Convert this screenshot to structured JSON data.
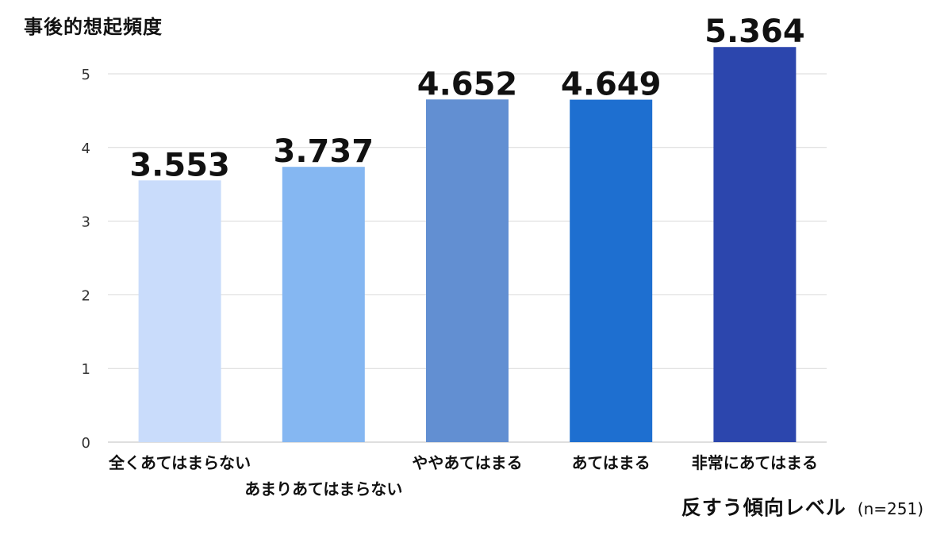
{
  "chart_data": {
    "type": "bar",
    "title": "",
    "ylabel": "事後的想起頻度",
    "xlabel": "反すう傾向レベル",
    "note": "(n=251)",
    "categories": [
      "全くあてはまらない",
      "あまりあてはまらない",
      "ややあてはまる",
      "あてはまる",
      "非常にあてはまる"
    ],
    "values": [
      3.553,
      3.737,
      4.652,
      4.649,
      5.364
    ],
    "data_labels": [
      "3.553",
      "3.737",
      "4.652",
      "4.649",
      "5.364"
    ],
    "bar_colors": [
      "#c9dcfb",
      "#85b7f2",
      "#628fd2",
      "#1e6fd0",
      "#2c46ad"
    ],
    "ylim": [
      0,
      5.364
    ],
    "yticks": [
      0,
      1,
      2,
      3,
      4,
      5
    ],
    "grid": true,
    "legend": "none"
  }
}
